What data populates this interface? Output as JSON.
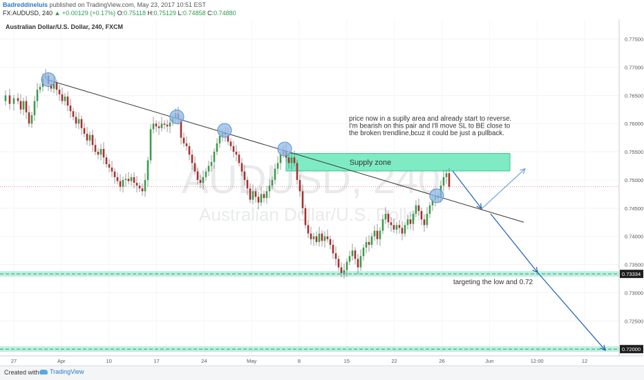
{
  "header": {
    "user": "Badreddineluis",
    "published_text": "published on TradingView.com, May 23, 2017 10:51 EST",
    "symbol": "FX:AUDUSD, 240",
    "change": "+0.00129 (+0.17%)",
    "o_label": "O:",
    "o_value": "0.75118",
    "h_label": "H:",
    "h_value": "0.75129",
    "l_label": "L:",
    "l_value": "0.74858",
    "c_label": "C:",
    "c_value": "0.74880"
  },
  "footer": {
    "created_with": "Created with",
    "logo_text": "TradingView"
  },
  "chart_data": {
    "type": "candlestick",
    "title": "Australian Dollar/U.S. Dollar, 240, FXCM",
    "watermark_symbol": "AUDUSD, 240",
    "watermark_name": "Australian Dollar/U.S. Dollar",
    "y_ticks": [
      "0.77500",
      "0.77000",
      "0.76500",
      "0.76000",
      "0.75500",
      "0.75000",
      "0.74500",
      "0.74000",
      "0.73500",
      "0.73000",
      "0.72500"
    ],
    "ylim": [
      0.7188,
      0.7785
    ],
    "x_ticks": [
      "27",
      "Apr",
      "10",
      "17",
      "24",
      "May",
      "8",
      "15",
      "22",
      "26",
      "Jun",
      "12:00",
      "12"
    ],
    "price_path": [
      [
        0,
        0.764
      ],
      [
        8,
        0.765
      ],
      [
        14,
        0.7635
      ],
      [
        20,
        0.7645
      ],
      [
        26,
        0.764
      ],
      [
        30,
        0.7625
      ],
      [
        34,
        0.764
      ],
      [
        38,
        0.762
      ],
      [
        42,
        0.76
      ],
      [
        46,
        0.7615
      ],
      [
        50,
        0.764
      ],
      [
        54,
        0.766
      ],
      [
        58,
        0.7665
      ],
      [
        62,
        0.768
      ],
      [
        66,
        0.7685
      ],
      [
        70,
        0.767
      ],
      [
        74,
        0.7662
      ],
      [
        78,
        0.7672
      ],
      [
        82,
        0.766
      ],
      [
        86,
        0.7652
      ],
      [
        90,
        0.764
      ],
      [
        94,
        0.7648
      ],
      [
        98,
        0.7632
      ],
      [
        102,
        0.7622
      ],
      [
        106,
        0.7612
      ],
      [
        110,
        0.76
      ],
      [
        114,
        0.7608
      ],
      [
        118,
        0.7592
      ],
      [
        122,
        0.7582
      ],
      [
        126,
        0.757
      ],
      [
        130,
        0.758
      ],
      [
        134,
        0.7562
      ],
      [
        138,
        0.755
      ],
      [
        142,
        0.7545
      ],
      [
        146,
        0.7555
      ],
      [
        150,
        0.754
      ],
      [
        154,
        0.7528
      ],
      [
        158,
        0.7522
      ],
      [
        162,
        0.7515
      ],
      [
        166,
        0.7505
      ],
      [
        170,
        0.7498
      ],
      [
        174,
        0.7488
      ],
      [
        178,
        0.75
      ],
      [
        182,
        0.7502
      ],
      [
        186,
        0.7498
      ],
      [
        190,
        0.7505
      ],
      [
        194,
        0.7495
      ],
      [
        198,
        0.749
      ],
      [
        202,
        0.7485
      ],
      [
        206,
        0.748
      ],
      [
        210,
        0.75
      ],
      [
        214,
        0.7535
      ],
      [
        218,
        0.759
      ],
      [
        222,
        0.76
      ],
      [
        226,
        0.7595
      ],
      [
        230,
        0.7592
      ],
      [
        234,
        0.76
      ],
      [
        238,
        0.7598
      ],
      [
        242,
        0.7595
      ],
      [
        246,
        0.7602
      ],
      [
        250,
        0.761
      ],
      [
        254,
        0.7618
      ],
      [
        258,
        0.7608
      ],
      [
        262,
        0.7575
      ],
      [
        266,
        0.7565
      ],
      [
        270,
        0.756
      ],
      [
        274,
        0.7545
      ],
      [
        278,
        0.753
      ],
      [
        282,
        0.7515
      ],
      [
        286,
        0.75
      ],
      [
        290,
        0.7495
      ],
      [
        294,
        0.7505
      ],
      [
        298,
        0.7515
      ],
      [
        302,
        0.7525
      ],
      [
        306,
        0.7532
      ],
      [
        310,
        0.755
      ],
      [
        314,
        0.7565
      ],
      [
        318,
        0.7578
      ],
      [
        322,
        0.7585
      ],
      [
        326,
        0.758
      ],
      [
        330,
        0.7568
      ],
      [
        334,
        0.756
      ],
      [
        338,
        0.755
      ],
      [
        342,
        0.7545
      ],
      [
        346,
        0.753
      ],
      [
        350,
        0.7515
      ],
      [
        354,
        0.75
      ],
      [
        358,
        0.7485
      ],
      [
        362,
        0.7465
      ],
      [
        366,
        0.748
      ],
      [
        370,
        0.747
      ],
      [
        374,
        0.746
      ],
      [
        378,
        0.7475
      ],
      [
        382,
        0.7468
      ],
      [
        386,
        0.748
      ],
      [
        390,
        0.749
      ],
      [
        394,
        0.75
      ],
      [
        398,
        0.752
      ],
      [
        402,
        0.753
      ],
      [
        406,
        0.7545
      ],
      [
        410,
        0.7552
      ],
      [
        414,
        0.754
      ],
      [
        418,
        0.753
      ],
      [
        422,
        0.754
      ],
      [
        426,
        0.753
      ],
      [
        430,
        0.75
      ],
      [
        434,
        0.748
      ],
      [
        438,
        0.745
      ],
      [
        442,
        0.742
      ],
      [
        446,
        0.7405
      ],
      [
        450,
        0.7395
      ],
      [
        454,
        0.74
      ],
      [
        458,
        0.739
      ],
      [
        462,
        0.7405
      ],
      [
        466,
        0.7392
      ],
      [
        470,
        0.74
      ],
      [
        474,
        0.7395
      ],
      [
        478,
        0.7385
      ],
      [
        482,
        0.737
      ],
      [
        486,
        0.736
      ],
      [
        490,
        0.7345
      ],
      [
        494,
        0.7335
      ],
      [
        498,
        0.734
      ],
      [
        502,
        0.7355
      ],
      [
        506,
        0.7365
      ],
      [
        510,
        0.7375
      ],
      [
        514,
        0.736
      ],
      [
        518,
        0.7345
      ],
      [
        522,
        0.7365
      ],
      [
        526,
        0.738
      ],
      [
        530,
        0.739
      ],
      [
        534,
        0.7385
      ],
      [
        538,
        0.74
      ],
      [
        542,
        0.741
      ],
      [
        546,
        0.7395
      ],
      [
        550,
        0.741
      ],
      [
        554,
        0.743
      ],
      [
        558,
        0.744
      ],
      [
        562,
        0.7425
      ],
      [
        566,
        0.742
      ],
      [
        570,
        0.7412
      ],
      [
        574,
        0.742
      ],
      [
        578,
        0.7415
      ],
      [
        582,
        0.7405
      ],
      [
        586,
        0.742
      ],
      [
        590,
        0.743
      ],
      [
        594,
        0.7422
      ],
      [
        598,
        0.744
      ],
      [
        602,
        0.7455
      ],
      [
        606,
        0.7445
      ],
      [
        610,
        0.743
      ],
      [
        614,
        0.742
      ],
      [
        618,
        0.744
      ],
      [
        622,
        0.7455
      ],
      [
        626,
        0.7465
      ],
      [
        630,
        0.7472
      ],
      [
        634,
        0.7468
      ],
      [
        638,
        0.749
      ],
      [
        642,
        0.7505
      ],
      [
        646,
        0.7512
      ],
      [
        650,
        0.7488
      ]
    ],
    "trendline": {
      "from": [
        68,
        0.7678
      ],
      "to": [
        758,
        0.7425
      ]
    },
    "touch_points": [
      [
        70,
        0.7678
      ],
      [
        256,
        0.7612
      ],
      [
        325,
        0.7588
      ],
      [
        412,
        0.7555
      ],
      [
        632,
        0.7472
      ]
    ],
    "supply_zone": {
      "x_from": 414,
      "x_to": 738,
      "y_from": 0.7516,
      "y_to": 0.7547,
      "label": "Supply zone"
    },
    "levels": [
      {
        "value": 0.73334,
        "label": "0.73334"
      },
      {
        "value": 0.72,
        "label": "0.72000"
      }
    ],
    "current_price": 0.7488,
    "projection_main": [
      [
        655,
        0.7516
      ],
      [
        697,
        0.7449
      ],
      [
        760,
        0.752
      ]
    ],
    "projection_down": [
      [
        710,
        0.744
      ],
      [
        778,
        0.7336
      ],
      [
        876,
        0.7198
      ]
    ],
    "annotations": {
      "note": [
        "price now in a suplly area and already start to reverse.",
        "I'm bearish on this pair and I'll move SL to BE close to",
        "the broken trendline,bcuz it could be just a pullback."
      ],
      "target": "targeting the low and 0.72"
    },
    "grid": true
  }
}
